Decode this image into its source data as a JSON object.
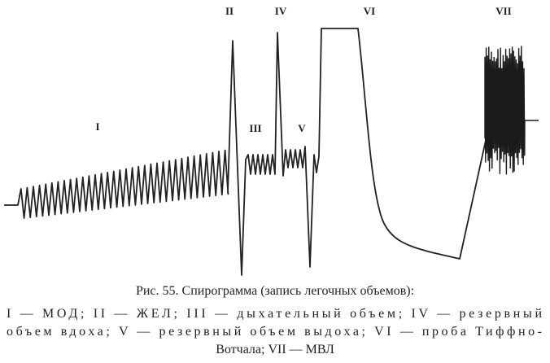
{
  "figure": {
    "labels": [
      "I",
      "II",
      "III",
      "IV",
      "V",
      "VI",
      "VII"
    ],
    "caption": {
      "title": "Рис. 55. Спирограмма (запись легочных объемов):",
      "lines": [
        "I — МОД; II — ЖЕЛ; III — дыхательный объем; IV — резервный",
        "объем вдоха; V — резервный объем выдоха; VI — проба Тиффно-",
        "Вотчала; VII — МВЛ"
      ]
    }
  }
}
